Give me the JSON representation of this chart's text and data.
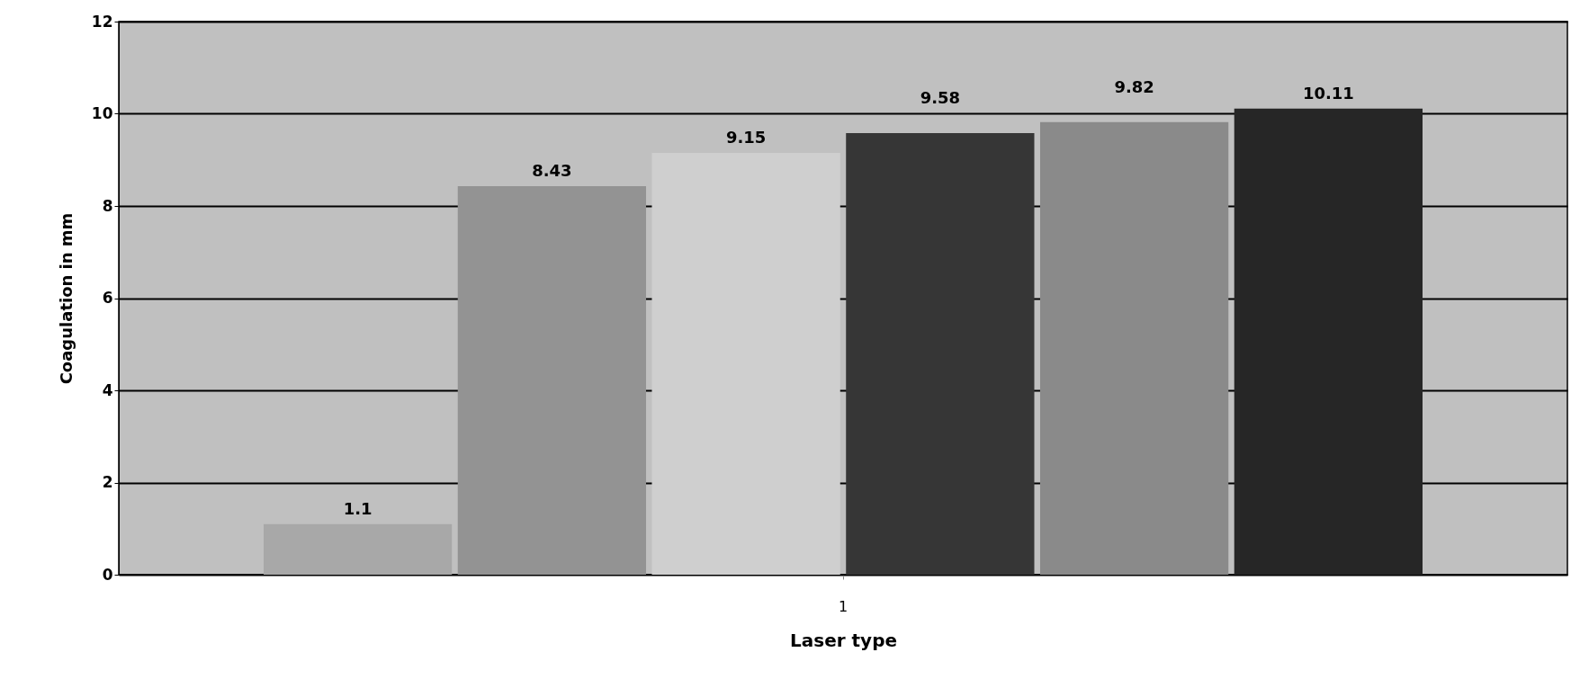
{
  "chart_data": {
    "type": "bar",
    "xlabel": "Laser type",
    "ylabel": "Coagulation in mm",
    "categories": [
      "1"
    ],
    "series": [
      {
        "color": "#a8a8a8",
        "values": [
          1.1
        ]
      },
      {
        "color": "#939393",
        "values": [
          8.43
        ]
      },
      {
        "color": "#cfcfcf",
        "values": [
          9.15
        ]
      },
      {
        "color": "#363636",
        "values": [
          9.58
        ]
      },
      {
        "color": "#8a8a8a",
        "values": [
          9.82
        ]
      },
      {
        "color": "#262626",
        "values": [
          10.11
        ]
      }
    ],
    "ylim": [
      0,
      12
    ],
    "yticks": [
      0,
      2,
      4,
      6,
      8,
      10,
      12
    ],
    "grid": "y",
    "data_labels": true
  }
}
